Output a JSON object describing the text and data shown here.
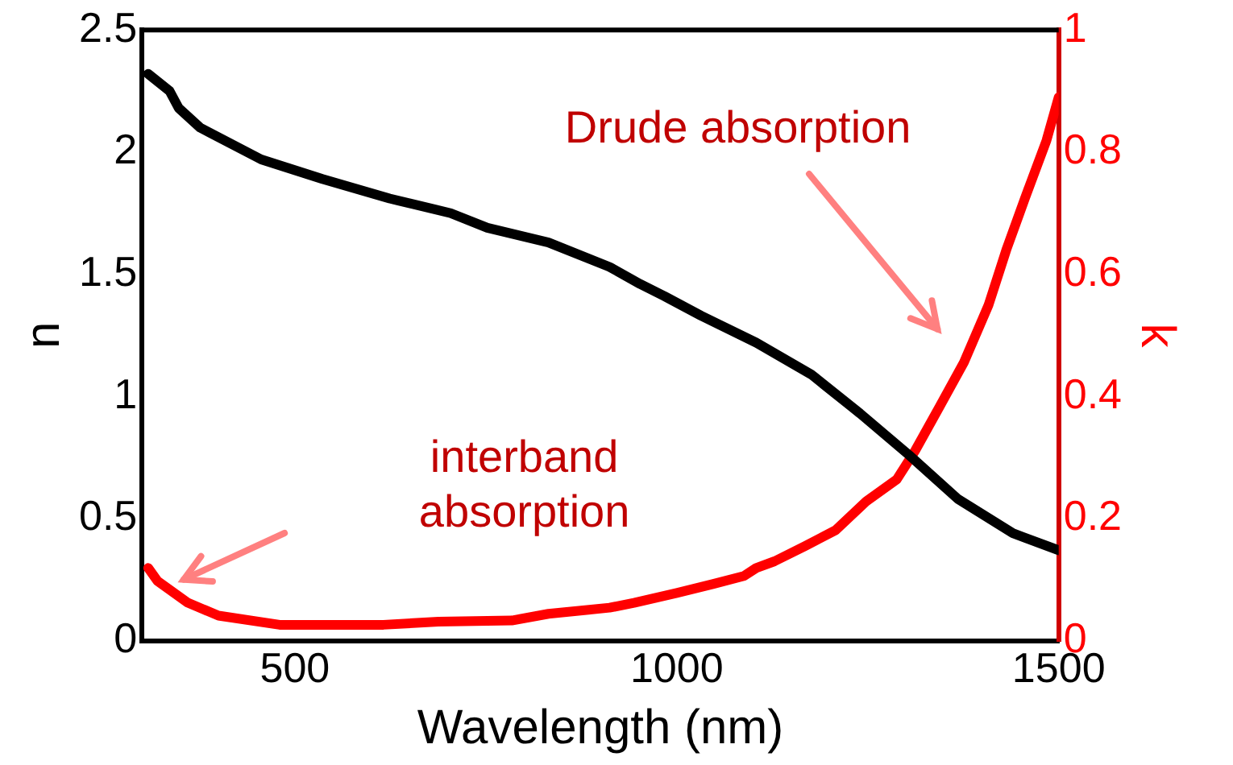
{
  "chart_data": {
    "type": "line",
    "xlabel": "Wavelength (nm)",
    "ylabel": "n",
    "y2label": "k",
    "xlim": [
      300,
      1500
    ],
    "xticks": [
      500,
      1000,
      1500
    ],
    "ylim": [
      0,
      2.5
    ],
    "yticks": [
      0,
      0.5,
      1,
      1.5,
      2,
      2.5
    ],
    "y2lim": [
      0,
      1
    ],
    "y2ticks": [
      0,
      0.2,
      0.4,
      0.6,
      0.8,
      1
    ],
    "grid": false,
    "legend": false,
    "marker": "none",
    "line_style": "solid",
    "series": [
      {
        "color": "#000000",
        "x": [
          308,
          336,
          348,
          376,
          456,
          536,
          624,
          704,
          752,
          832,
          912,
          952,
          984,
          1032,
          1104,
          1176,
          1240,
          1304,
          1368,
          1440,
          1500
        ],
        "values": [
          2.32,
          2.25,
          2.18,
          2.1,
          1.97,
          1.89,
          1.81,
          1.75,
          1.69,
          1.63,
          1.53,
          1.46,
          1.41,
          1.33,
          1.22,
          1.09,
          0.93,
          0.76,
          0.58,
          0.44,
          0.37
        ]
      },
      {
        "color": "#ff0000",
        "axis": "y2",
        "x": [
          308,
          320,
          360,
          400,
          480,
          616,
          688,
          784,
          832,
          912,
          944,
          1000,
          1048,
          1088,
          1104,
          1128,
          1168,
          1208,
          1248,
          1288,
          1312,
          1344,
          1376,
          1408,
          1432,
          1456,
          1484,
          1500
        ],
        "values": [
          0.119,
          0.098,
          0.062,
          0.041,
          0.026,
          0.026,
          0.031,
          0.033,
          0.044,
          0.054,
          0.062,
          0.078,
          0.093,
          0.106,
          0.119,
          0.13,
          0.155,
          0.181,
          0.228,
          0.264,
          0.311,
          0.383,
          0.456,
          0.549,
          0.642,
          0.725,
          0.819,
          0.89
        ]
      }
    ],
    "annotations": [
      "Drude absorption",
      "interband\nabsorption"
    ]
  }
}
